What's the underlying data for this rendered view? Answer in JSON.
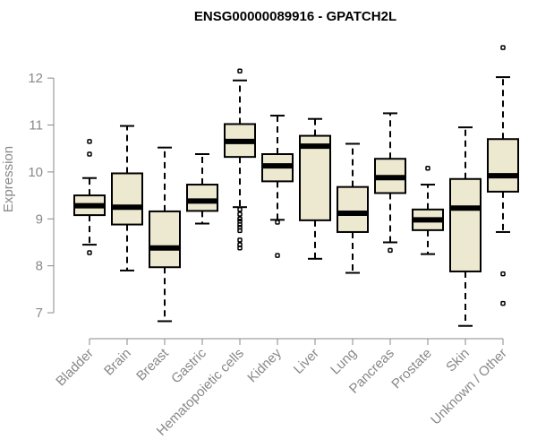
{
  "chart_data": {
    "type": "boxplot",
    "title": "ENSG00000089916 - GPATCH2L",
    "xlabel": "",
    "ylabel": "Expression",
    "ylim": [
      6.6,
      12.9
    ],
    "yticks": [
      7,
      8,
      9,
      10,
      11,
      12
    ],
    "box_color": "#EDE8D0",
    "categories": [
      "Bladder",
      "Brain",
      "Breast",
      "Gastric",
      "Hematopoietic cells",
      "Kidney",
      "Liver",
      "Lung",
      "Pancreas",
      "Prostate",
      "Skin",
      "Unknown / Other"
    ],
    "boxes": [
      {
        "whisker_low": 8.45,
        "q1": 9.08,
        "median": 9.28,
        "q3": 9.5,
        "whisker_high": 9.87,
        "outliers": [
          8.28,
          10.38,
          10.65
        ]
      },
      {
        "whisker_low": 7.9,
        "q1": 8.88,
        "median": 9.25,
        "q3": 9.97,
        "whisker_high": 10.98,
        "outliers": []
      },
      {
        "whisker_low": 6.82,
        "q1": 7.97,
        "median": 8.38,
        "q3": 9.16,
        "whisker_high": 10.52,
        "outliers": []
      },
      {
        "whisker_low": 8.9,
        "q1": 9.17,
        "median": 9.38,
        "q3": 9.73,
        "whisker_high": 10.38,
        "outliers": []
      },
      {
        "whisker_low": 9.25,
        "q1": 10.32,
        "median": 10.65,
        "q3": 11.02,
        "whisker_high": 11.95,
        "outliers": [
          12.15,
          9.2,
          9.1,
          9.0,
          8.95,
          8.88,
          8.82,
          8.75,
          8.55,
          8.45,
          8.38
        ]
      },
      {
        "whisker_low": 8.98,
        "q1": 9.8,
        "median": 10.13,
        "q3": 10.38,
        "whisker_high": 11.2,
        "outliers": [
          8.93,
          8.22
        ]
      },
      {
        "whisker_low": 8.15,
        "q1": 8.97,
        "median": 10.55,
        "q3": 10.77,
        "whisker_high": 11.13,
        "outliers": []
      },
      {
        "whisker_low": 7.85,
        "q1": 8.72,
        "median": 9.12,
        "q3": 9.68,
        "whisker_high": 10.6,
        "outliers": []
      },
      {
        "whisker_low": 8.5,
        "q1": 9.55,
        "median": 9.88,
        "q3": 10.28,
        "whisker_high": 11.25,
        "outliers": [
          8.33
        ]
      },
      {
        "whisker_low": 8.25,
        "q1": 8.76,
        "median": 8.98,
        "q3": 9.2,
        "whisker_high": 9.73,
        "outliers": [
          10.08
        ]
      },
      {
        "whisker_low": 6.72,
        "q1": 7.88,
        "median": 9.23,
        "q3": 9.85,
        "whisker_high": 10.95,
        "outliers": []
      },
      {
        "whisker_low": 8.72,
        "q1": 9.58,
        "median": 9.92,
        "q3": 10.7,
        "whisker_high": 12.02,
        "outliers": [
          12.65,
          7.83,
          7.2
        ]
      }
    ]
  }
}
